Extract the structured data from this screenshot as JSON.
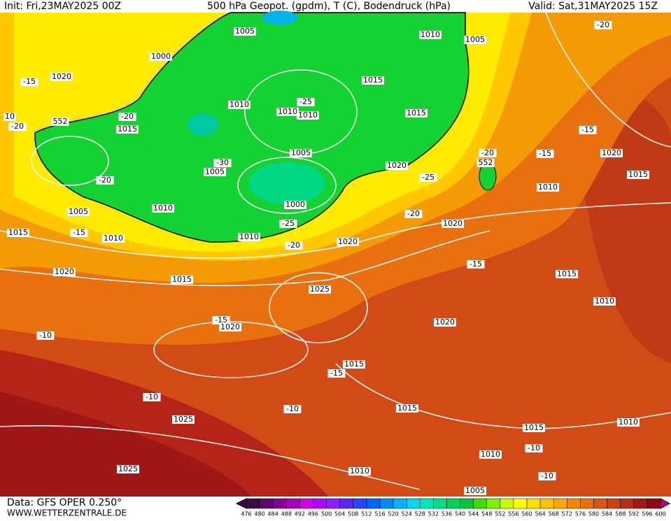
{
  "header": {
    "init": "Init: Fri,23MAY2025 00Z",
    "title": "500 hPa Geopot. (gpdm), T (C), Bodendruck (hPa)",
    "valid": "Valid: Sat,31MAY2025 15Z"
  },
  "footer": {
    "source": "Data: GFS OPER 0.250°",
    "site": "WWW.WETTERZENTRALE.DE"
  },
  "map_labels": [
    "1005",
    "1010",
    "1005",
    "1000",
    "1020",
    "-15",
    "1015",
    "1010",
    "-25",
    "1010",
    "1010",
    "1015",
    "10",
    "-20",
    "-20",
    "1015",
    "552",
    "1005",
    "-20",
    "-15",
    "1020",
    "-15",
    "1020",
    "552",
    "-30",
    "1005",
    "-20",
    "1000",
    "1010",
    "1015",
    "-25",
    "1010",
    "1005",
    "-20",
    "-25",
    "1020",
    "1015",
    "-15",
    "1010",
    "1010",
    "-20",
    "1020",
    "-15",
    "1015",
    "1020",
    "1015",
    "1025",
    "1010",
    "-15",
    "1020",
    "1020",
    "-10",
    "1015",
    "-15",
    "-10",
    "1025",
    "-10",
    "1015",
    "1010",
    "1015",
    "-10",
    "1010",
    "1025",
    "1010",
    "-10",
    "1005",
    "-20"
  ],
  "colorbar": {
    "labels": [
      476,
      480,
      484,
      488,
      492,
      496,
      500,
      504,
      508,
      512,
      516,
      520,
      524,
      528,
      532,
      536,
      540,
      544,
      548,
      552,
      556,
      560,
      564,
      568,
      572,
      576,
      580,
      584,
      588,
      592,
      596,
      600
    ],
    "colors": [
      "#3c0a46",
      "#5a0a6e",
      "#820096",
      "#aa00be",
      "#d200e6",
      "#b400ff",
      "#8c1eff",
      "#5a28ff",
      "#2846ff",
      "#0064ff",
      "#008cff",
      "#00b4ff",
      "#00d7f0",
      "#00e6be",
      "#00dc8c",
      "#00d25a",
      "#00c832",
      "#3cdc00",
      "#82f000",
      "#c8ff00",
      "#ffff00",
      "#ffe100",
      "#ffc300",
      "#ffa500",
      "#f58700",
      "#eb6e0a",
      "#dc5514",
      "#cd4114",
      "#b92d14",
      "#a01914",
      "#8c0a14"
    ]
  }
}
